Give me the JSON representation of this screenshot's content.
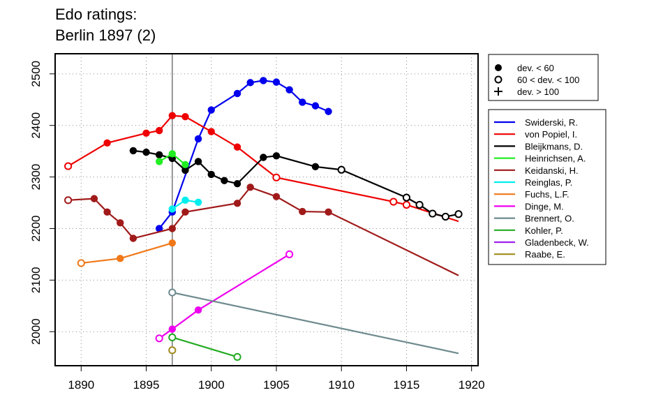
{
  "chart_data": {
    "type": "line",
    "title": [
      "Edo ratings:",
      "Berlin 1897 (2)"
    ],
    "xlabel": "",
    "ylabel": "",
    "xlim": [
      1888,
      1920.5
    ],
    "ylim": [
      1934,
      2539
    ],
    "x_ticks": [
      1890,
      1895,
      1900,
      1905,
      1910,
      1915,
      1920
    ],
    "y_ticks": [
      2000,
      2100,
      2200,
      2300,
      2400,
      2500
    ],
    "grid": "dotted",
    "reference_line_x": 1897,
    "marker_legend": {
      "placement": "top-right",
      "entries": [
        {
          "symbol": "filled-circle",
          "label": "dev. < 60"
        },
        {
          "symbol": "open-circle",
          "label": "60 < dev. < 100"
        },
        {
          "symbol": "plus",
          "label": "dev. > 100"
        }
      ]
    },
    "series": [
      {
        "name": "Swiderski, R.",
        "color": "#0000ee",
        "points": [
          {
            "x": 1896,
            "y": 2200,
            "m": "f"
          },
          {
            "x": 1897,
            "y": 2232,
            "m": "f"
          },
          {
            "x": 1899,
            "y": 2374,
            "m": "f"
          },
          {
            "x": 1900,
            "y": 2430,
            "m": "f"
          },
          {
            "x": 1902,
            "y": 2462,
            "m": "f"
          },
          {
            "x": 1903,
            "y": 2483,
            "m": "f"
          },
          {
            "x": 1904,
            "y": 2487,
            "m": "f"
          },
          {
            "x": 1905,
            "y": 2484,
            "m": "f"
          },
          {
            "x": 1906,
            "y": 2469,
            "m": "f"
          },
          {
            "x": 1907,
            "y": 2445,
            "m": "f"
          },
          {
            "x": 1908,
            "y": 2438,
            "m": "f"
          },
          {
            "x": 1909,
            "y": 2427,
            "m": "f"
          }
        ]
      },
      {
        "name": "von Popiel, I.",
        "color": "#ee0000",
        "points": [
          {
            "x": 1889,
            "y": 2321,
            "m": "o"
          },
          {
            "x": 1892,
            "y": 2366,
            "m": "f"
          },
          {
            "x": 1895,
            "y": 2385,
            "m": "f"
          },
          {
            "x": 1896,
            "y": 2390,
            "m": "f"
          },
          {
            "x": 1897,
            "y": 2419,
            "m": "f"
          },
          {
            "x": 1898,
            "y": 2417,
            "m": "f"
          },
          {
            "x": 1900,
            "y": 2388,
            "m": "f"
          },
          {
            "x": 1902,
            "y": 2358,
            "m": "f"
          },
          {
            "x": 1905,
            "y": 2299,
            "m": "o"
          },
          {
            "x": 1914,
            "y": 2252,
            "m": "o"
          },
          {
            "x": 1915,
            "y": 2246,
            "m": "o"
          },
          {
            "x": 1919,
            "y": 2214,
            "m": "n"
          }
        ]
      },
      {
        "name": "Bleijkmans, D.",
        "color": "#000000",
        "points": [
          {
            "x": 1894,
            "y": 2351,
            "m": "f"
          },
          {
            "x": 1895,
            "y": 2348,
            "m": "f"
          },
          {
            "x": 1896,
            "y": 2343,
            "m": "f"
          },
          {
            "x": 1897,
            "y": 2336,
            "m": "f"
          },
          {
            "x": 1898,
            "y": 2313,
            "m": "f"
          },
          {
            "x": 1899,
            "y": 2330,
            "m": "f"
          },
          {
            "x": 1900,
            "y": 2305,
            "m": "f"
          },
          {
            "x": 1901,
            "y": 2293,
            "m": "f"
          },
          {
            "x": 1902,
            "y": 2287,
            "m": "f"
          },
          {
            "x": 1904,
            "y": 2338,
            "m": "f"
          },
          {
            "x": 1905,
            "y": 2341,
            "m": "f"
          },
          {
            "x": 1908,
            "y": 2320,
            "m": "f"
          },
          {
            "x": 1910,
            "y": 2314,
            "m": "o"
          },
          {
            "x": 1915,
            "y": 2260,
            "m": "o"
          },
          {
            "x": 1916,
            "y": 2246,
            "m": "o"
          },
          {
            "x": 1917,
            "y": 2229,
            "m": "o"
          },
          {
            "x": 1918,
            "y": 2223,
            "m": "o"
          },
          {
            "x": 1919,
            "y": 2228,
            "m": "o"
          }
        ]
      },
      {
        "name": "Heinrichsen, A.",
        "color": "#22ee22",
        "points": [
          {
            "x": 1896,
            "y": 2330,
            "m": "f"
          },
          {
            "x": 1897,
            "y": 2345,
            "m": "f"
          },
          {
            "x": 1898,
            "y": 2324,
            "m": "f"
          }
        ]
      },
      {
        "name": "Keidanski, H.",
        "color": "#a01a1a",
        "points": [
          {
            "x": 1889,
            "y": 2255,
            "m": "o"
          },
          {
            "x": 1891,
            "y": 2258,
            "m": "f"
          },
          {
            "x": 1892,
            "y": 2232,
            "m": "f"
          },
          {
            "x": 1893,
            "y": 2211,
            "m": "f"
          },
          {
            "x": 1894,
            "y": 2181,
            "m": "f"
          },
          {
            "x": 1897,
            "y": 2200,
            "m": "f"
          },
          {
            "x": 1898,
            "y": 2232,
            "m": "f"
          },
          {
            "x": 1902,
            "y": 2249,
            "m": "f"
          },
          {
            "x": 1903,
            "y": 2280,
            "m": "f"
          },
          {
            "x": 1905,
            "y": 2262,
            "m": "f"
          },
          {
            "x": 1907,
            "y": 2233,
            "m": "f"
          },
          {
            "x": 1909,
            "y": 2232,
            "m": "f"
          },
          {
            "x": 1919,
            "y": 2109,
            "m": "n"
          }
        ]
      },
      {
        "name": "Reinglas, P.",
        "color": "#00eeee",
        "points": [
          {
            "x": 1897,
            "y": 2238,
            "m": "f"
          },
          {
            "x": 1898,
            "y": 2255,
            "m": "f"
          },
          {
            "x": 1899,
            "y": 2251,
            "m": "f"
          }
        ]
      },
      {
        "name": "Fuchs, L.F.",
        "color": "#f07818",
        "points": [
          {
            "x": 1890,
            "y": 2133,
            "m": "o"
          },
          {
            "x": 1893,
            "y": 2142,
            "m": "f"
          },
          {
            "x": 1897,
            "y": 2172,
            "m": "f"
          }
        ]
      },
      {
        "name": "Dinge, M.",
        "color": "#ee00ee",
        "points": [
          {
            "x": 1896,
            "y": 1987,
            "m": "o"
          },
          {
            "x": 1897,
            "y": 2005,
            "m": "f"
          },
          {
            "x": 1899,
            "y": 2042,
            "m": "f"
          },
          {
            "x": 1906,
            "y": 2150,
            "m": "o"
          }
        ]
      },
      {
        "name": "Brennert, O.",
        "color": "#6e8a8e",
        "points": [
          {
            "x": 1897,
            "y": 2076,
            "m": "o"
          },
          {
            "x": 1919,
            "y": 1958,
            "m": "n"
          }
        ]
      },
      {
        "name": "Kohler, P.",
        "color": "#22aa22",
        "points": [
          {
            "x": 1897,
            "y": 1989,
            "m": "o"
          },
          {
            "x": 1902,
            "y": 1951,
            "m": "o"
          }
        ]
      },
      {
        "name": "Gladenbeck, W.",
        "color": "#a020f0",
        "points": []
      },
      {
        "name": "Raabe, E.",
        "color": "#a08a1e",
        "points": [
          {
            "x": 1897,
            "y": 1964,
            "m": "o"
          }
        ]
      }
    ]
  }
}
